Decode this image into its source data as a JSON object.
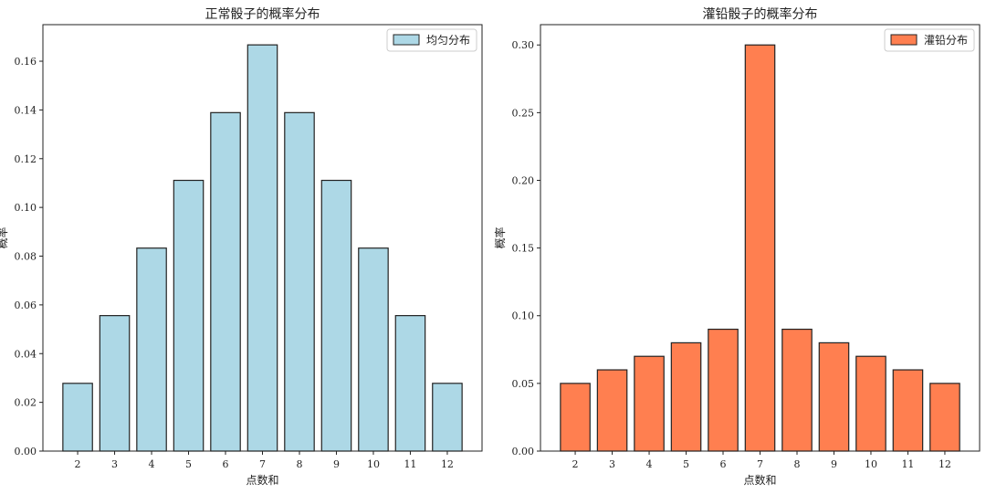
{
  "chart_data": [
    {
      "type": "bar",
      "title": "正常骰子的概率分布",
      "xlabel": "点数和",
      "ylabel": "概率",
      "categories": [
        "2",
        "3",
        "4",
        "5",
        "6",
        "7",
        "8",
        "9",
        "10",
        "11",
        "12"
      ],
      "series": [
        {
          "name": "均匀分布",
          "color": "#add8e6",
          "values": [
            0.0278,
            0.0556,
            0.0833,
            0.1111,
            0.1389,
            0.1667,
            0.1389,
            0.1111,
            0.0833,
            0.0556,
            0.0278
          ]
        }
      ],
      "ylim": [
        0,
        0.175
      ],
      "yticks": [
        "0.00",
        "0.02",
        "0.04",
        "0.06",
        "0.08",
        "0.10",
        "0.12",
        "0.14",
        "0.16"
      ],
      "legend": "top-right",
      "grid": false
    },
    {
      "type": "bar",
      "title": "灌铅骰子的概率分布",
      "xlabel": "点数和",
      "ylabel": "概率",
      "categories": [
        "2",
        "3",
        "4",
        "5",
        "6",
        "7",
        "8",
        "9",
        "10",
        "11",
        "12"
      ],
      "series": [
        {
          "name": "灌铅分布",
          "color": "#ff7f50",
          "values": [
            0.05,
            0.06,
            0.07,
            0.08,
            0.09,
            0.3,
            0.09,
            0.08,
            0.07,
            0.06,
            0.05
          ]
        }
      ],
      "ylim": [
        0,
        0.315
      ],
      "yticks": [
        "0.00",
        "0.05",
        "0.10",
        "0.15",
        "0.20",
        "0.25",
        "0.30"
      ],
      "legend": "top-right",
      "grid": false
    }
  ]
}
